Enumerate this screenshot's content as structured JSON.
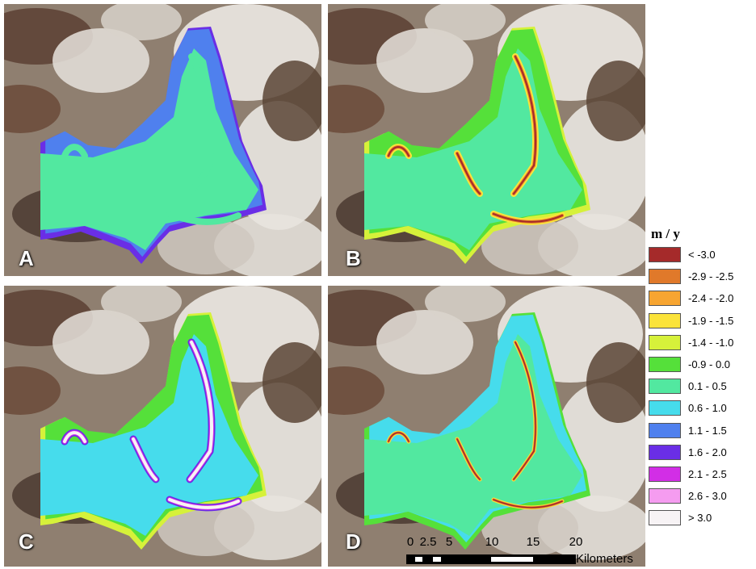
{
  "panels": [
    {
      "label": "A",
      "scheme": "A"
    },
    {
      "label": "B",
      "scheme": "B"
    },
    {
      "label": "C",
      "scheme": "C"
    },
    {
      "label": "D",
      "scheme": "D"
    }
  ],
  "legend": {
    "title": "m / y",
    "items": [
      {
        "label": "< -3.0",
        "color": "#a52a2a"
      },
      {
        "label": "-2.9 - -2.5",
        "color": "#e0792a"
      },
      {
        "label": "-2.4 - -2.0",
        "color": "#f7a531"
      },
      {
        "label": "-1.9 - -1.5",
        "color": "#fbe33a"
      },
      {
        "label": "-1.4 - -1.0",
        "color": "#d6f13a"
      },
      {
        "label": "-0.9 - 0.0",
        "color": "#55e03a"
      },
      {
        "label": "0.1 - 0.5",
        "color": "#52e8a0"
      },
      {
        "label": "0.6 - 1.0",
        "color": "#46dcec"
      },
      {
        "label": "1.1 - 1.5",
        "color": "#4f80ee"
      },
      {
        "label": "1.6 - 2.0",
        "color": "#6a2ee6"
      },
      {
        "label": "2.1 - 2.5",
        "color": "#d22ee6"
      },
      {
        "label": "2.6 - 3.0",
        "color": "#f59cf0"
      },
      {
        "label": "> 3.0",
        "color": "#f7f3f5"
      }
    ]
  },
  "scalebar": {
    "ticks": [
      "0",
      "2.5",
      "5",
      "10",
      "15",
      "20"
    ],
    "units": "Kilometers"
  }
}
